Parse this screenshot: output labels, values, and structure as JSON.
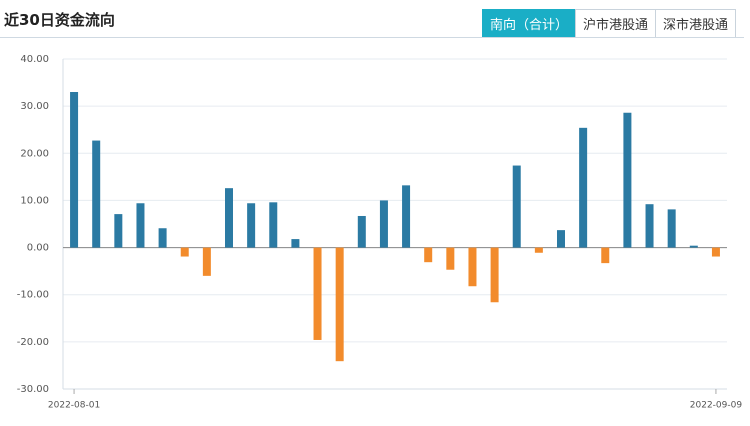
{
  "header": {
    "title": "近30日资金流向",
    "tabs": [
      "南向（合计）",
      "沪市港股通",
      "深市港股通"
    ],
    "active_tab": 0
  },
  "chart_data": {
    "type": "bar",
    "categories": [
      "2022-08-01",
      null,
      null,
      null,
      null,
      null,
      null,
      null,
      null,
      null,
      null,
      null,
      null,
      null,
      null,
      null,
      null,
      null,
      null,
      null,
      null,
      null,
      null,
      null,
      null,
      null,
      null,
      null,
      null,
      "2022-09-09"
    ],
    "values": [
      33.0,
      22.7,
      7.1,
      9.4,
      4.1,
      -1.9,
      -6.0,
      12.6,
      9.4,
      9.6,
      1.8,
      -19.6,
      -24.1,
      6.7,
      10.0,
      13.2,
      -3.1,
      -4.7,
      -8.2,
      -11.6,
      17.4,
      -1.1,
      3.7,
      25.4,
      -3.3,
      28.6,
      9.2,
      8.1,
      0.4,
      -1.9
    ],
    "positive_color": "#2b7aa3",
    "negative_color": "#f28b2c",
    "ylim": [
      -30,
      40
    ],
    "yticks": [
      {
        "value": -30,
        "label": "-30.00"
      },
      {
        "value": -20,
        "label": "-20.00"
      },
      {
        "value": -10,
        "label": "-10.00"
      },
      {
        "value": 0,
        "label": "0.00"
      },
      {
        "value": 10,
        "label": "10.00"
      },
      {
        "value": 20,
        "label": "20.00"
      },
      {
        "value": 30,
        "label": "30.00"
      },
      {
        "value": 40,
        "label": "40.00"
      }
    ],
    "grid": true
  }
}
